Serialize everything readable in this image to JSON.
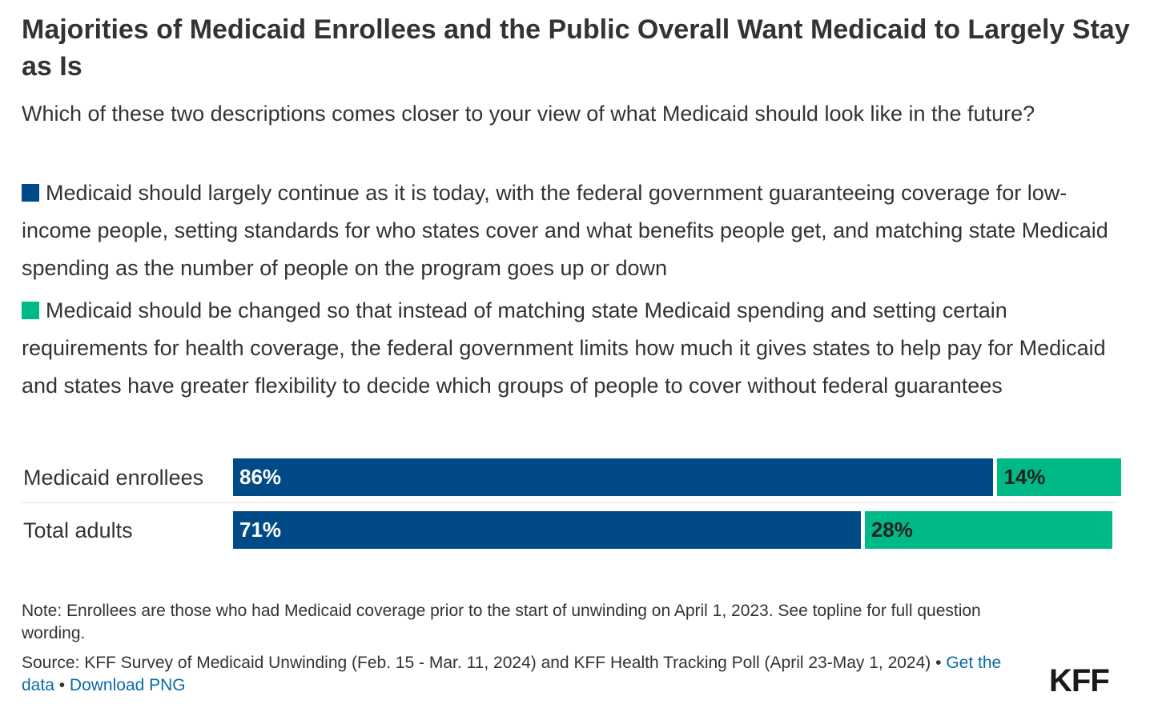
{
  "title": "Majorities of Medicaid Enrollees and the Public Overall Want Medicaid to Largely Stay as Is",
  "subtitle": "Which of these two descriptions comes closer to your view of what Medicaid should look like in the future?",
  "colors": {
    "continue": "#004b87",
    "changed": "#00b989"
  },
  "chart_data": {
    "type": "bar",
    "orientation": "horizontal",
    "stacked": true,
    "categories": [
      "Medicaid enrollees",
      "Total adults"
    ],
    "series": [
      {
        "name": "Medicaid should largely continue as it is today, with the federal government guaranteeing coverage for low-income people, setting standards for who states cover and what benefits people get, and matching state Medicaid spending as the number of people on the program goes up or down",
        "values": [
          86,
          71
        ],
        "labels": [
          "86%",
          "71%"
        ]
      },
      {
        "name": "Medicaid should be changed so that instead of matching state Medicaid spending and setting certain requirements for health coverage, the federal government limits how much it gives states to help pay for Medicaid and states have greater flexibility to decide which groups of people to cover without federal guarantees",
        "values": [
          14,
          28
        ],
        "labels": [
          "14%",
          "28%"
        ]
      }
    ],
    "xlim": [
      0,
      100
    ],
    "legend": "top"
  },
  "note": "Note: Enrollees are those who had Medicaid coverage prior to the start of unwinding on April 1, 2023. See topline for full question wording.",
  "source": {
    "text": "Source: KFF Survey of Medicaid Unwinding (Feb. 15 - Mar. 11, 2024) and KFF Health Tracking Poll (April 23-May 1, 2024) • ",
    "get_data": "Get the data",
    "separator": " • ",
    "download": "Download PNG"
  },
  "logo": "KFF"
}
